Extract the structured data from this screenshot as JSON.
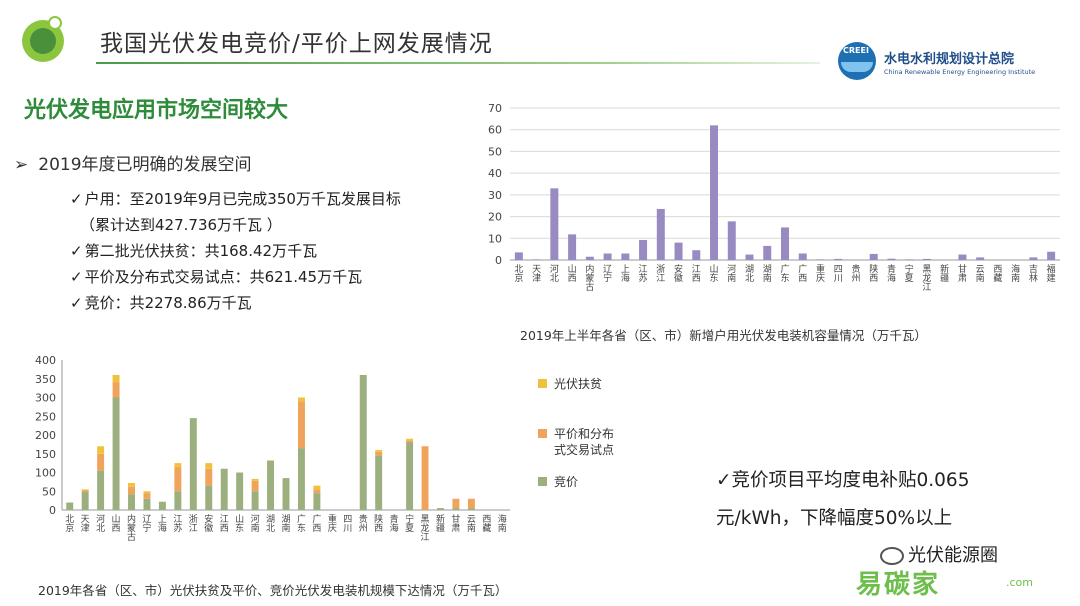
{
  "header": {
    "title": "我国光伏发电竞价/平价上网发展情况",
    "org_logo_tag": "CREEI",
    "org_name_cn": "水电水利规划设计总院",
    "org_name_en": "China Renewable Energy Engineering Institute"
  },
  "subtitle": "光伏发电应用市场空间较大",
  "bullet": {
    "arrow": "➢",
    "heading": "2019年度已明确的发展空间",
    "check": "✓",
    "items": [
      "户用：至2019年9月已完成350万千瓦发展目标",
      "（累计达到427.736万千瓦 ）",
      "第二批光伏扶贫：共168.42万千瓦",
      "平价及分布式交易试点：共621.45万千瓦",
      "竞价：共2278.86万千瓦"
    ]
  },
  "summary": {
    "line1": "✓竞价项目平均度电补贴0.065",
    "line2": "元/kWh，下降幅度50%以上"
  },
  "watermark": {
    "line1": "光伏能源圈",
    "line2": "易碳家",
    "line3": ".com"
  },
  "colors": {
    "title_line": "#4c9a4a",
    "subtitle": "#2e8b3a",
    "bar_purple": "#9a8ac2",
    "bar_green": "#9bb07e",
    "bar_orange": "#f0a35a",
    "bar_yellow": "#f0c23b"
  },
  "chart_data": [
    {
      "type": "bar",
      "title": "2019年上半年各省（区、市）新增户用光伏发电装机容量情况（万千瓦）",
      "categories": [
        "北京",
        "天津",
        "河北",
        "山西",
        "内蒙古",
        "辽宁",
        "上海",
        "江苏",
        "浙江",
        "安徽",
        "江西",
        "山东",
        "河南",
        "湖北",
        "湖南",
        "广东",
        "广西",
        "重庆",
        "四川",
        "贵州",
        "陕西",
        "青海",
        "宁夏",
        "黑龙江",
        "新疆",
        "甘肃",
        "云南",
        "西藏",
        "海南",
        "吉林",
        "福建"
      ],
      "series": [
        {
          "values": [
            3.5,
            0.3,
            33,
            11.8,
            1.5,
            3,
            3,
            9.2,
            23.5,
            8,
            4.5,
            62,
            17.8,
            2.5,
            6.5,
            15,
            3,
            0.3,
            0.5,
            0.2,
            2.8,
            0.6,
            0.3,
            0.5,
            0.1,
            2.5,
            1.2,
            0.1,
            0.2,
            1.2,
            3.8
          ]
        }
      ],
      "ylim": [
        0,
        70
      ],
      "yticks": [
        0,
        10,
        20,
        30,
        40,
        50,
        60,
        70
      ],
      "grid": true
    },
    {
      "type": "bar",
      "stacked": true,
      "title": "2019年各省（区、市）光伏扶贫及平价、竞价光伏发电装机规模下达情况（万千瓦）",
      "categories": [
        "北京",
        "天津",
        "河北",
        "山西",
        "内蒙古",
        "辽宁",
        "上海",
        "江苏",
        "浙江",
        "安徽",
        "江西",
        "山东",
        "河南",
        "湖北",
        "湖南",
        "广东",
        "广西",
        "重庆",
        "四川",
        "贵州",
        "陕西",
        "青海",
        "宁夏",
        "黑龙江",
        "新疆",
        "甘肃",
        "云南",
        "西藏",
        "海南"
      ],
      "series": [
        {
          "name": "竞价",
          "values": [
            20,
            48,
            105,
            300,
            42,
            30,
            22,
            50,
            245,
            65,
            110,
            100,
            50,
            132,
            85,
            165,
            45,
            0,
            0,
            360,
            145,
            0,
            180,
            0,
            5,
            5,
            5,
            0,
            0
          ]
        },
        {
          "name": "平价和分布式交易试点",
          "values": [
            0,
            5,
            45,
            40,
            20,
            15,
            0,
            65,
            0,
            45,
            0,
            0,
            28,
            0,
            0,
            125,
            10,
            0,
            0,
            0,
            10,
            0,
            5,
            170,
            0,
            25,
            25,
            0,
            0
          ]
        },
        {
          "name": "光伏扶贫",
          "values": [
            0,
            2,
            20,
            20,
            10,
            5,
            0,
            10,
            0,
            15,
            0,
            0,
            5,
            0,
            0,
            10,
            10,
            0,
            0,
            0,
            5,
            0,
            5,
            0,
            0,
            0,
            0,
            0,
            0
          ]
        }
      ],
      "ylim": [
        0,
        400
      ],
      "yticks": [
        0,
        50,
        100,
        150,
        200,
        250,
        300,
        350,
        400
      ],
      "legend_position": "right"
    }
  ]
}
